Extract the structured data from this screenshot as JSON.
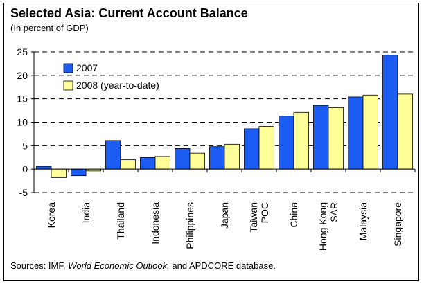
{
  "title": "Selected Asia: Current Account Balance",
  "subtitle": "(In percent of GDP)",
  "footer": {
    "prefix": "Sources: IMF, ",
    "italic": "World Economic Outlook,",
    "suffix": "  and APDCORE database."
  },
  "colors": {
    "series_2007": "#1c5cf2",
    "series_2008": "#ffff99",
    "grid": "#000000"
  },
  "chart_data": {
    "type": "bar",
    "categories": [
      [
        "Korea"
      ],
      [
        "India"
      ],
      [
        "Thailand"
      ],
      [
        "Indonesia"
      ],
      [
        "Philippines"
      ],
      [
        "Japan"
      ],
      [
        "Taiwan",
        "POC"
      ],
      [
        "China"
      ],
      [
        "Hong Kong",
        "SAR"
      ],
      [
        "Malaysia"
      ],
      [
        "Singapore"
      ]
    ],
    "series": [
      {
        "name": "2007",
        "values": [
          0.6,
          -1.4,
          6.1,
          2.5,
          4.4,
          4.8,
          8.6,
          11.3,
          13.6,
          15.4,
          24.3
        ]
      },
      {
        "name": "2008 (year-to-date)",
        "values": [
          -1.8,
          -0.4,
          2.0,
          2.7,
          3.4,
          5.3,
          9.1,
          12.1,
          13.1,
          15.8,
          16.0
        ]
      }
    ],
    "ylim": [
      -5,
      25
    ],
    "yticks": [
      -5,
      0,
      5,
      10,
      15,
      20,
      25
    ],
    "grid": true,
    "legend": "top-left"
  }
}
